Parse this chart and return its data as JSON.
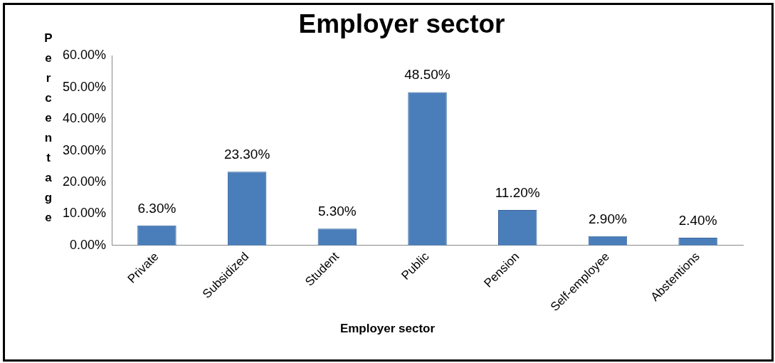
{
  "chart_data": {
    "type": "bar",
    "title": "Employer sector",
    "xlabel": "Employer sector",
    "ylabel": "Percentage",
    "categories": [
      "Private",
      "Subsidized",
      "Student",
      "Public",
      "Pension",
      "Self-employee",
      "Abstentions"
    ],
    "values": [
      6.3,
      23.3,
      5.3,
      48.5,
      11.2,
      2.9,
      2.4
    ],
    "value_labels": [
      "6.30%",
      "23.30%",
      "5.30%",
      "48.50%",
      "11.20%",
      "2.90%",
      "2.40%"
    ],
    "color": "#4a7ebb",
    "ylim": [
      0,
      60
    ],
    "yticks": [
      {
        "value": 0,
        "label": "0.00%"
      },
      {
        "value": 10,
        "label": "10.00%"
      },
      {
        "value": 20,
        "label": "20.00%"
      },
      {
        "value": 30,
        "label": "30.00%"
      },
      {
        "value": 40,
        "label": "40.00%"
      },
      {
        "value": 50,
        "label": "50.00%"
      },
      {
        "value": 60,
        "label": "60.00%"
      }
    ],
    "grid": false,
    "legend": false
  }
}
